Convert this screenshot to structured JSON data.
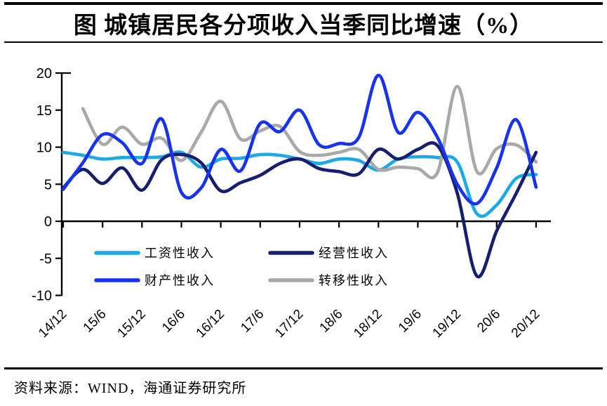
{
  "title": "图  城镇居民各分项收入当季同比增速（%）",
  "source": "资料来源：WIND，海通证券研究所",
  "colors": {
    "wage": "#1CA9E8",
    "business": "#161F6F",
    "property": "#1733EE",
    "transfer": "#A9A9A9",
    "axis": "#000000"
  },
  "legend": {
    "rows": [
      [
        "工资性收入",
        "经营性收入"
      ],
      [
        "财产性收入",
        "转移性收入"
      ]
    ]
  },
  "chart_data": {
    "type": "line",
    "title": "城镇居民各分项收入当季同比增速（%）",
    "x_unit": "quarter (yy/m)",
    "x_tick_labels": [
      "14/12",
      "15/6",
      "15/12",
      "16/6",
      "16/12",
      "17/6",
      "17/12",
      "18/6",
      "18/12",
      "19/6",
      "19/12",
      "20/6",
      "20/12"
    ],
    "points_per_tick": 2,
    "n_points": 25,
    "ylim": [
      -10,
      20
    ],
    "yticks": [
      -10,
      -5,
      0,
      5,
      10,
      15,
      20
    ],
    "grid": false,
    "legend_position": "inside-lower-left-2x2",
    "series": [
      {
        "name": "工资性收入",
        "color_key": "wage",
        "values": [
          9.3,
          8.9,
          8.4,
          8.6,
          8.6,
          8.7,
          9.3,
          7.3,
          8.4,
          8.5,
          9.0,
          8.9,
          8.4,
          7.8,
          8.4,
          8.2,
          6.9,
          8.4,
          8.7,
          8.6,
          8.0,
          1.0,
          2.2,
          5.8,
          6.3
        ]
      },
      {
        "name": "转移性收入",
        "color_key": "transfer",
        "values": [
          null,
          15.2,
          10.4,
          12.7,
          10.4,
          11.2,
          8.2,
          12.0,
          16.2,
          11.1,
          12.2,
          12.8,
          9.4,
          8.9,
          9.3,
          9.7,
          7.0,
          7.3,
          7.1,
          6.6,
          18.2,
          6.7,
          9.8,
          10.3,
          8.0
        ]
      },
      {
        "name": "经营性收入",
        "color_key": "business",
        "values": [
          4.5,
          7.0,
          5.1,
          7.2,
          4.2,
          8.3,
          9.0,
          7.9,
          4.1,
          5.2,
          6.2,
          7.8,
          8.4,
          7.1,
          6.7,
          6.4,
          9.7,
          8.4,
          9.7,
          10.2,
          3.8,
          -7.4,
          -1.3,
          3.8,
          9.3
        ]
      },
      {
        "name": "财产性收入",
        "color_key": "property",
        "values": [
          4.3,
          7.9,
          11.7,
          10.6,
          7.8,
          13.8,
          3.9,
          4.5,
          9.7,
          6.8,
          13.2,
          12.1,
          15.0,
          10.3,
          10.5,
          11.3,
          19.7,
          12.0,
          14.7,
          11.3,
          5.0,
          2.4,
          7.2,
          13.7,
          4.6
        ]
      }
    ]
  }
}
